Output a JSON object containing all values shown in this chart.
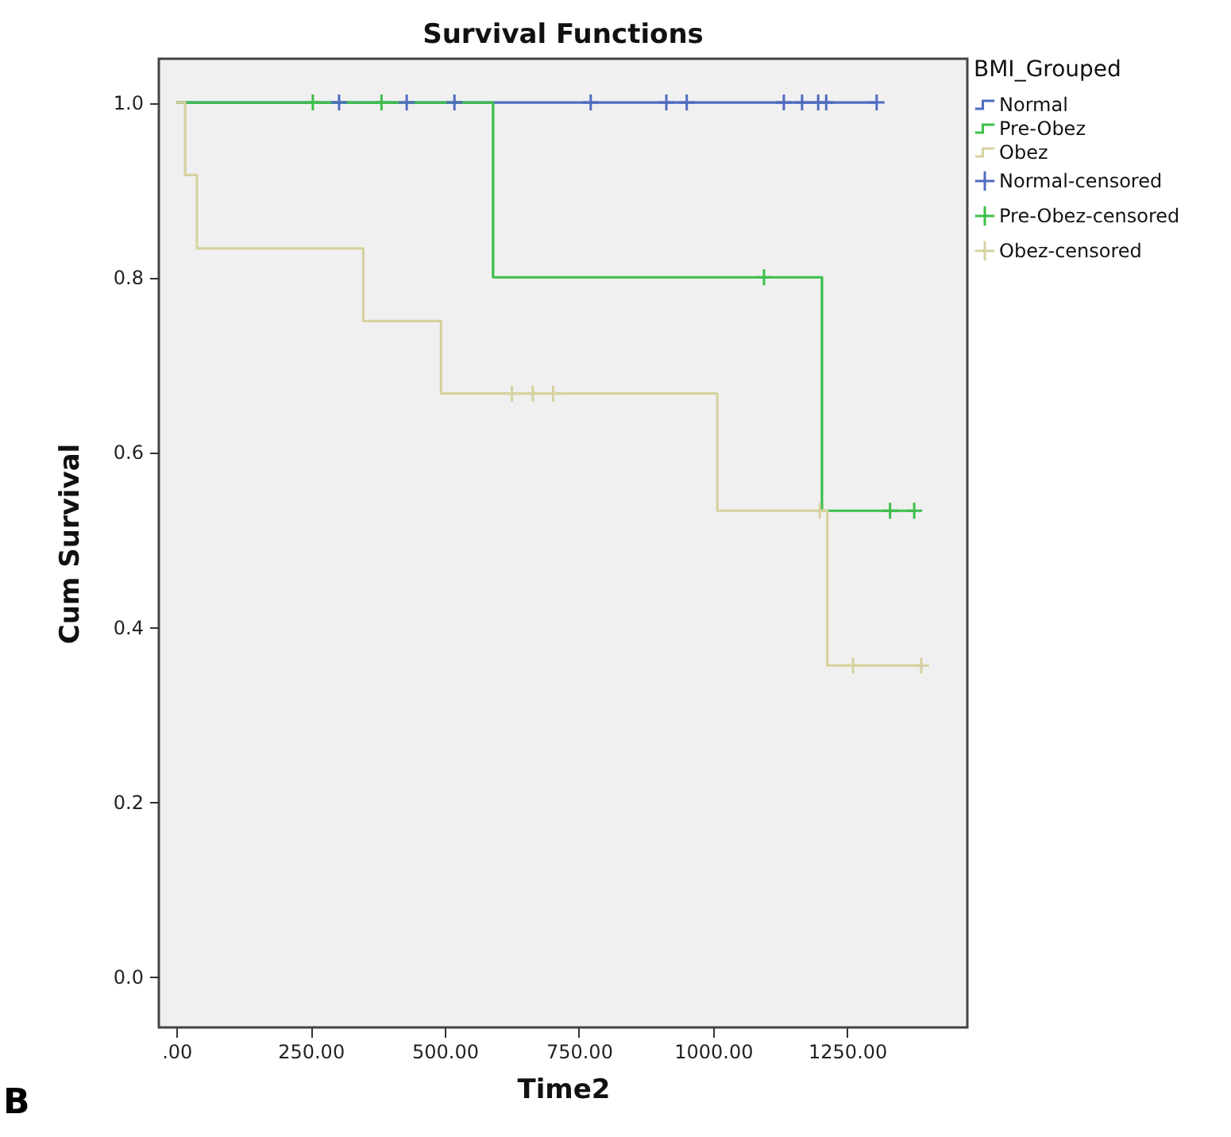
{
  "chart_data": {
    "type": "step",
    "title": "Survival Functions",
    "xlabel": "Time2",
    "ylabel": "Cum Survival",
    "legend_title": "BMI_Grouped",
    "legend": "right",
    "grid": false,
    "xlim": [
      -33,
      1474
    ],
    "ylim": [
      -0.058,
      1.05
    ],
    "xticks": [
      {
        "value": 0,
        "label": ".00"
      },
      {
        "value": 250,
        "label": "250.00"
      },
      {
        "value": 500,
        "label": "500.00"
      },
      {
        "value": 750,
        "label": "750.00"
      },
      {
        "value": 1000,
        "label": "1000.00"
      },
      {
        "value": 1250,
        "label": "1250.00"
      }
    ],
    "yticks": [
      {
        "value": 0,
        "label": "0.0"
      },
      {
        "value": 0.2,
        "label": "0.2"
      },
      {
        "value": 0.4,
        "label": "0.4"
      },
      {
        "value": 0.6,
        "label": "0.6"
      },
      {
        "value": 0.8,
        "label": "0.8"
      },
      {
        "value": 1,
        "label": "1.0"
      }
    ],
    "annotations": [
      "B"
    ],
    "series": [
      {
        "name": "Normal",
        "color": "#4f6bbf",
        "x": [
          0,
          1305
        ],
        "values": [
          1,
          1
        ]
      },
      {
        "name": "Pre-Obez",
        "color": "#3cbf4a",
        "x": [
          0,
          590,
          1203,
          1375
        ],
        "values": [
          1,
          0.8,
          0.533,
          0.533
        ]
      },
      {
        "name": "Obez",
        "color": "#d6d2a0",
        "x": [
          0,
          16,
          38,
          348,
          493,
          1008,
          1213,
          1388
        ],
        "values": [
          1,
          0.917,
          0.833,
          0.75,
          0.667,
          0.533,
          0.356,
          0.356
        ]
      },
      {
        "name": "Normal-censored",
        "type": "scatter",
        "marker": "cross",
        "color": "#4f6bbf",
        "x": [
          303,
          429,
          518,
          772,
          913,
          951,
          1132,
          1166,
          1196,
          1211,
          1305
        ],
        "values": [
          1,
          1,
          1,
          1,
          1,
          1,
          1,
          1,
          1,
          1,
          1
        ]
      },
      {
        "name": "Pre-Obez-censored",
        "type": "scatter",
        "marker": "cross",
        "color": "#3cbf4a",
        "x": [
          254,
          382,
          1095,
          1330,
          1375
        ],
        "values": [
          1,
          1,
          0.8,
          0.533,
          0.533
        ]
      },
      {
        "name": "Obez-censored",
        "type": "scatter",
        "marker": "cross",
        "color": "#d6d2a0",
        "x": [
          625,
          664,
          702,
          1199,
          1261,
          1388
        ],
        "values": [
          0.667,
          0.667,
          0.667,
          0.533,
          0.356,
          0.356
        ]
      }
    ]
  }
}
